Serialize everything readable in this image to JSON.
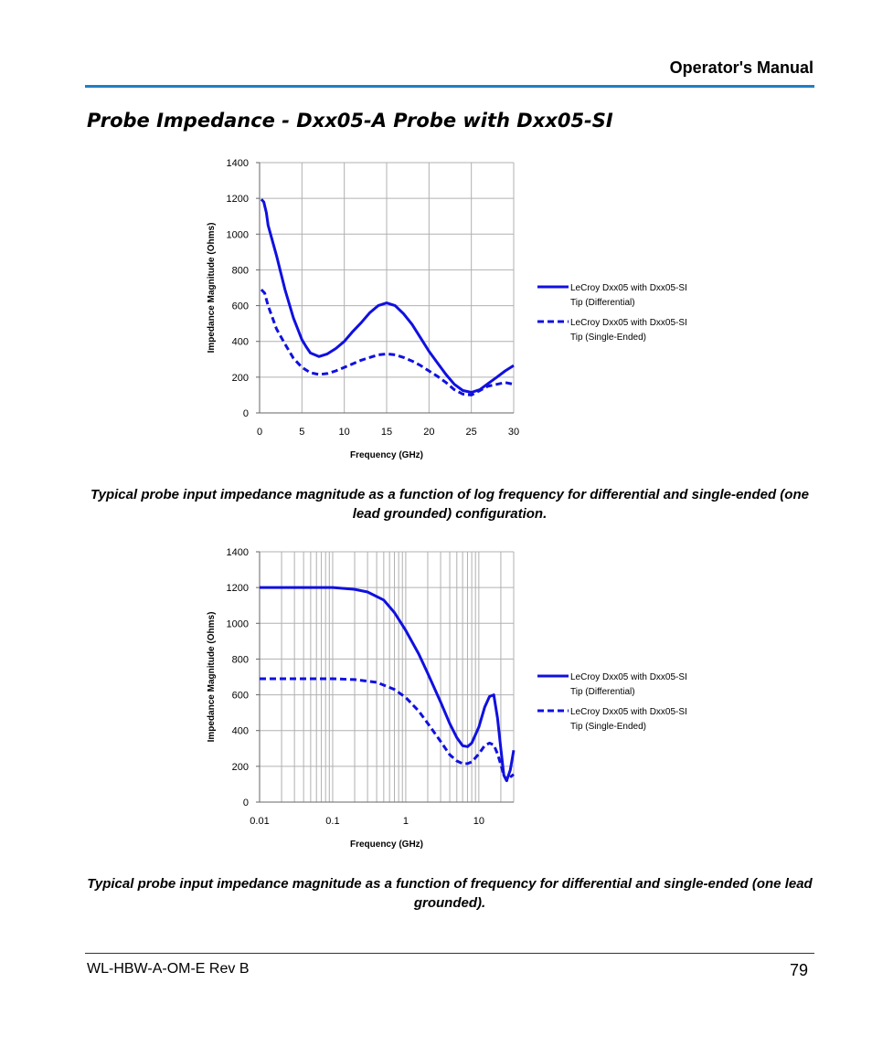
{
  "header": {
    "title": "Operator's Manual",
    "rule_color": "#1f7fc4"
  },
  "section_title": "Probe Impedance - Dxx05-A Probe with Dxx05-SI",
  "chart_data": [
    {
      "type": "line",
      "xscale": "linear",
      "xlim": [
        0,
        30
      ],
      "ylim": [
        0,
        1400
      ],
      "xticks": [
        0,
        5,
        10,
        15,
        20,
        25,
        30
      ],
      "yticks": [
        0,
        200,
        400,
        600,
        800,
        1000,
        1200,
        1400
      ],
      "xlabel": "Frequency (GHz)",
      "ylabel": "Impedance Magnitude  (Ohms)",
      "grid": true,
      "legend_position": "right",
      "color": "#1010e0",
      "series": [
        {
          "name": "LeCroy Dxx05 with Dxx05-SI Tip (Differential)",
          "style": "solid",
          "points": [
            [
              0.2,
              1195
            ],
            [
              0.5,
              1180
            ],
            [
              0.8,
              1120
            ],
            [
              1,
              1050
            ],
            [
              2,
              880
            ],
            [
              3,
              690
            ],
            [
              4,
              530
            ],
            [
              4.5,
              470
            ],
            [
              5,
              410
            ],
            [
              5.5,
              370
            ],
            [
              6,
              335
            ],
            [
              7,
              315
            ],
            [
              8,
              330
            ],
            [
              9,
              360
            ],
            [
              10,
              400
            ],
            [
              11,
              455
            ],
            [
              12,
              505
            ],
            [
              13,
              560
            ],
            [
              14,
              600
            ],
            [
              15,
              615
            ],
            [
              16,
              600
            ],
            [
              17,
              555
            ],
            [
              18,
              495
            ],
            [
              19,
              420
            ],
            [
              20,
              345
            ],
            [
              21,
              280
            ],
            [
              22,
              215
            ],
            [
              23,
              160
            ],
            [
              24,
              125
            ],
            [
              25,
              115
            ],
            [
              26,
              130
            ],
            [
              27,
              165
            ],
            [
              28,
              200
            ],
            [
              29,
              235
            ],
            [
              30,
              265
            ]
          ]
        },
        {
          "name": "LeCroy Dxx05 with Dxx05-SI Tip (Single-Ended)",
          "style": "dashed",
          "points": [
            [
              0.2,
              690
            ],
            [
              0.6,
              670
            ],
            [
              1,
              600
            ],
            [
              2,
              470
            ],
            [
              3,
              385
            ],
            [
              4,
              305
            ],
            [
              5,
              255
            ],
            [
              6,
              225
            ],
            [
              7,
              215
            ],
            [
              8,
              220
            ],
            [
              9,
              235
            ],
            [
              10,
              255
            ],
            [
              11,
              275
            ],
            [
              12,
              295
            ],
            [
              13,
              310
            ],
            [
              14,
              325
            ],
            [
              15,
              330
            ],
            [
              16,
              325
            ],
            [
              17,
              310
            ],
            [
              18,
              290
            ],
            [
              19,
              265
            ],
            [
              20,
              235
            ],
            [
              21,
              205
            ],
            [
              22,
              170
            ],
            [
              23,
              130
            ],
            [
              24,
              105
            ],
            [
              25,
              100
            ],
            [
              26,
              125
            ],
            [
              27,
              150
            ],
            [
              28,
              160
            ],
            [
              29,
              170
            ],
            [
              30,
              160
            ]
          ]
        }
      ]
    },
    {
      "type": "line",
      "xscale": "log",
      "xlim": [
        0.01,
        30
      ],
      "ylim": [
        0,
        1400
      ],
      "xticks": [
        0.01,
        0.1,
        1,
        10
      ],
      "xtick_labels": [
        "0.01",
        "0.1",
        "1",
        "10"
      ],
      "yticks": [
        0,
        200,
        400,
        600,
        800,
        1000,
        1200,
        1400
      ],
      "xlabel": "Frequency (GHz)",
      "ylabel": "Impedance Magnitude  (Ohms)",
      "grid": true,
      "legend_position": "right",
      "color": "#1010e0",
      "series": [
        {
          "name": "LeCroy Dxx05 with Dxx05-SI Tip (Differential)",
          "style": "solid",
          "points": [
            [
              0.01,
              1200
            ],
            [
              0.05,
              1200
            ],
            [
              0.1,
              1200
            ],
            [
              0.2,
              1190
            ],
            [
              0.3,
              1175
            ],
            [
              0.5,
              1130
            ],
            [
              0.7,
              1060
            ],
            [
              1,
              960
            ],
            [
              1.5,
              830
            ],
            [
              2,
              720
            ],
            [
              3,
              560
            ],
            [
              4,
              440
            ],
            [
              5,
              360
            ],
            [
              6,
              315
            ],
            [
              7,
              310
            ],
            [
              8,
              330
            ],
            [
              10,
              420
            ],
            [
              12,
              530
            ],
            [
              14,
              590
            ],
            [
              16,
              600
            ],
            [
              18,
              470
            ],
            [
              20,
              300
            ],
            [
              22,
              150
            ],
            [
              24,
              120
            ],
            [
              27,
              180
            ],
            [
              30,
              290
            ]
          ]
        },
        {
          "name": "LeCroy Dxx05 with Dxx05-SI Tip (Single-Ended)",
          "style": "dashed",
          "points": [
            [
              0.01,
              690
            ],
            [
              0.05,
              690
            ],
            [
              0.1,
              690
            ],
            [
              0.2,
              685
            ],
            [
              0.4,
              670
            ],
            [
              0.7,
              630
            ],
            [
              1,
              585
            ],
            [
              1.5,
              510
            ],
            [
              2,
              440
            ],
            [
              3,
              340
            ],
            [
              4,
              265
            ],
            [
              5,
              230
            ],
            [
              6,
              215
            ],
            [
              7,
              215
            ],
            [
              8,
              225
            ],
            [
              10,
              270
            ],
            [
              12,
              315
            ],
            [
              14,
              330
            ],
            [
              16,
              320
            ],
            [
              18,
              270
            ],
            [
              20,
              210
            ],
            [
              22,
              150
            ],
            [
              24,
              120
            ],
            [
              27,
              140
            ],
            [
              30,
              155
            ]
          ]
        }
      ]
    }
  ],
  "captions": [
    "Typical probe input impedance magnitude as a function of log frequency for differential and single-ended (one lead grounded) configuration.",
    "Typical probe input impedance magnitude as a function of frequency for differential and single-ended (one lead grounded)."
  ],
  "footer": {
    "doc_id": "WL-HBW-A-OM-E Rev B",
    "page_number": "79"
  }
}
